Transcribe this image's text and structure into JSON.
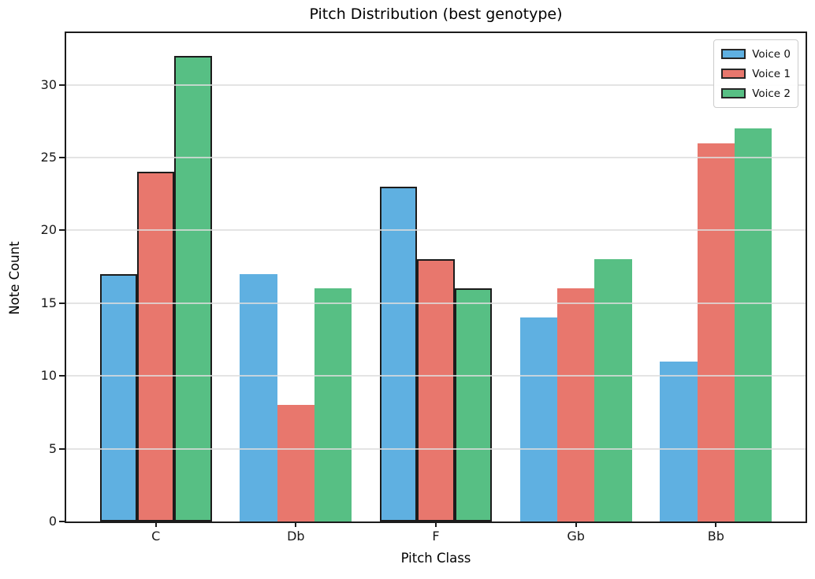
{
  "chart_data": {
    "type": "bar",
    "title": "Pitch Distribution (best genotype)",
    "xlabel": "Pitch Class",
    "ylabel": "Note Count",
    "categories": [
      "C",
      "Db",
      "F",
      "Gb",
      "Bb"
    ],
    "series": [
      {
        "name": "Voice 0",
        "color": "#5fb0e1",
        "values": [
          17,
          17,
          23,
          14,
          11
        ]
      },
      {
        "name": "Voice 1",
        "color": "#e8776d",
        "values": [
          24,
          8,
          18,
          16,
          26
        ]
      },
      {
        "name": "Voice 2",
        "color": "#57bf84",
        "values": [
          32,
          16,
          16,
          18,
          27
        ]
      }
    ],
    "highlighted_categories": [
      "C",
      "F"
    ],
    "bar_edge_color": "#1c1c1c",
    "yticks": [
      0,
      5,
      10,
      15,
      20,
      25,
      30
    ],
    "ylim": [
      0,
      33.55
    ],
    "grid": "horizontal gridlines drawn over bars",
    "grid_color": "#dddddd",
    "axis_color": "#1c1c1c",
    "legend_position": "upper right",
    "legend_labels": [
      "Voice 0",
      "Voice 1",
      "Voice 2"
    ],
    "background_color": "#ffffff"
  }
}
